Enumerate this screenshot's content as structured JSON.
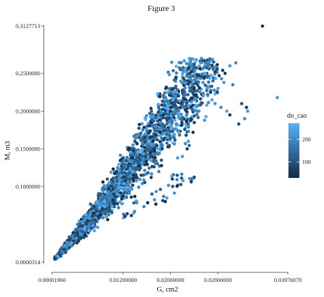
{
  "chart_data": {
    "type": "scatter",
    "title": "Figure 3",
    "xlabel": "G, cm2",
    "ylabel": "M, m3",
    "xlim": [
      1.96e-05,
      0.03976078
    ],
    "ylim": [
      3.14e-05,
      0.3127713
    ],
    "x_ticks": [
      "0.00001960",
      "0.01200000",
      "0.02000000",
      "0.02800000",
      "0.03976078"
    ],
    "x_tick_values": [
      1.96e-05,
      0.012,
      0.02,
      0.028,
      0.03976078
    ],
    "y_ticks": [
      "0.0000314",
      "0.1000000",
      "0.1500000",
      "0.2000000",
      "0.2500000",
      "0.3127713"
    ],
    "y_tick_values": [
      3.14e-05,
      0.1,
      0.15,
      0.2,
      0.25,
      0.3127713
    ],
    "grid": false,
    "legend": {
      "title": "do_cao",
      "position": "right",
      "ticks": [
        "100",
        "200"
      ],
      "tick_values": [
        100,
        200
      ],
      "range": [
        30,
        270
      ],
      "color_low": "#132b43",
      "color_high": "#56b1f7"
    },
    "highlight_points": [
      {
        "x": 0.0355,
        "y": 0.3127,
        "c": 40
      },
      {
        "x": 0.038,
        "y": 0.218,
        "c": 230
      },
      {
        "x": 0.029,
        "y": 0.238,
        "c": 230
      },
      {
        "x": 0.0286,
        "y": 0.243,
        "c": 200
      },
      {
        "x": 0.03,
        "y": 0.26,
        "c": 220
      },
      {
        "x": 0.031,
        "y": 0.264,
        "c": 200
      },
      {
        "x": 0.0305,
        "y": 0.235,
        "c": 180
      },
      {
        "x": 0.032,
        "y": 0.21,
        "c": 90
      },
      {
        "x": 0.0328,
        "y": 0.205,
        "c": 70
      },
      {
        "x": 0.033,
        "y": 0.2,
        "c": 220
      },
      {
        "x": 0.0325,
        "y": 0.19,
        "c": 200
      },
      {
        "x": 0.0315,
        "y": 0.183,
        "c": 90
      },
      {
        "x": 0.03,
        "y": 0.195,
        "c": 60
      },
      {
        "x": 0.0295,
        "y": 0.2,
        "c": 240
      },
      {
        "x": 0.0285,
        "y": 0.205,
        "c": 200
      },
      {
        "x": 0.0275,
        "y": 0.21,
        "c": 220
      },
      {
        "x": 0.027,
        "y": 0.215,
        "c": 240
      },
      {
        "x": 0.028,
        "y": 0.23,
        "c": 230
      },
      {
        "x": 0.0275,
        "y": 0.252,
        "c": 70
      },
      {
        "x": 0.0282,
        "y": 0.247,
        "c": 50
      },
      {
        "x": 0.0288,
        "y": 0.254,
        "c": 60
      },
      {
        "x": 0.0292,
        "y": 0.25,
        "c": 60
      },
      {
        "x": 0.0262,
        "y": 0.23,
        "c": 220
      },
      {
        "x": 0.0255,
        "y": 0.22,
        "c": 230
      },
      {
        "x": 0.0248,
        "y": 0.2,
        "c": 210
      },
      {
        "x": 0.024,
        "y": 0.185,
        "c": 60
      },
      {
        "x": 0.0235,
        "y": 0.19,
        "c": 80
      },
      {
        "x": 0.023,
        "y": 0.16,
        "c": 230
      },
      {
        "x": 0.0225,
        "y": 0.157,
        "c": 200
      },
      {
        "x": 0.0228,
        "y": 0.15,
        "c": 60
      },
      {
        "x": 0.022,
        "y": 0.14,
        "c": 230
      },
      {
        "x": 0.0212,
        "y": 0.138,
        "c": 220
      },
      {
        "x": 0.02,
        "y": 0.2,
        "c": 60
      },
      {
        "x": 0.0195,
        "y": 0.19,
        "c": 80
      },
      {
        "x": 0.0182,
        "y": 0.185,
        "c": 230
      },
      {
        "x": 0.0175,
        "y": 0.18,
        "c": 220
      },
      {
        "x": 0.0165,
        "y": 0.165,
        "c": 60
      },
      {
        "x": 0.0158,
        "y": 0.17,
        "c": 210
      },
      {
        "x": 0.0168,
        "y": 0.155,
        "c": 230
      }
    ]
  }
}
